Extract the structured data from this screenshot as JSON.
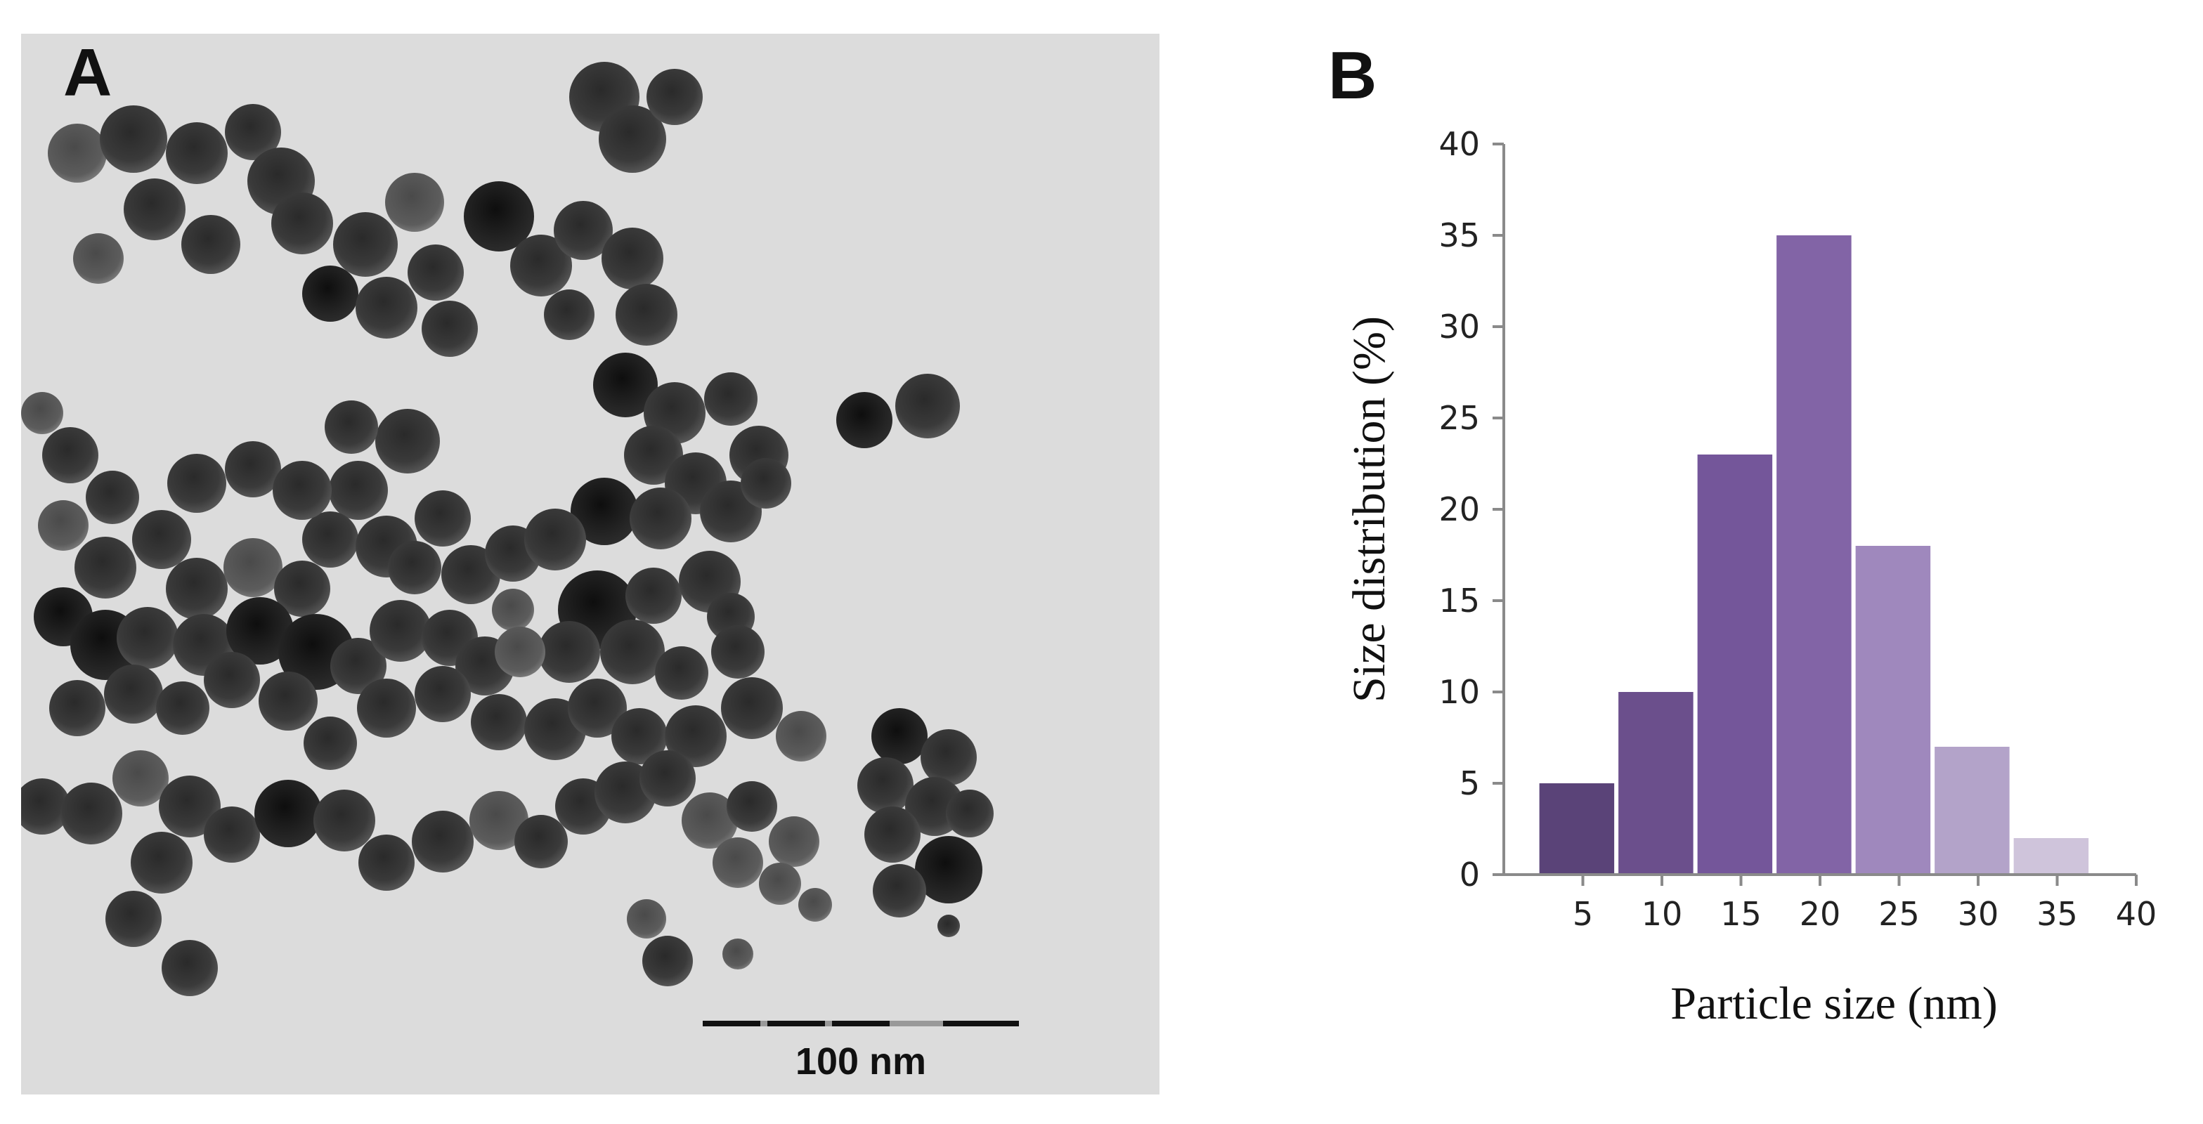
{
  "panels": {
    "a": {
      "label": "A",
      "scale_bar": {
        "label": "100 nm"
      }
    },
    "b": {
      "label": "B"
    }
  },
  "chart_data": {
    "type": "bar",
    "categories": [
      "5",
      "10",
      "15",
      "20",
      "25",
      "30",
      "35"
    ],
    "values": [
      5,
      10,
      23,
      35,
      18,
      7,
      2
    ],
    "x_values": [
      5,
      10,
      15,
      20,
      25,
      30,
      35
    ],
    "xlabel": "Particle size (nm)",
    "ylabel": "Size distribution (%)",
    "xlim": [
      0,
      40
    ],
    "ylim": [
      0,
      40
    ],
    "xticks": [
      "5",
      "10",
      "15",
      "20",
      "25",
      "30",
      "35",
      "40"
    ],
    "yticks": [
      "0",
      "5",
      "10",
      "15",
      "20",
      "25",
      "30",
      "35",
      "40"
    ],
    "bar_colors": [
      "#5a4378",
      "#6b4f8c",
      "#74569a",
      "#8264a6",
      "#9f88bd",
      "#b3a3c9",
      "#cfc4db"
    ],
    "grid": false,
    "legend": false
  }
}
